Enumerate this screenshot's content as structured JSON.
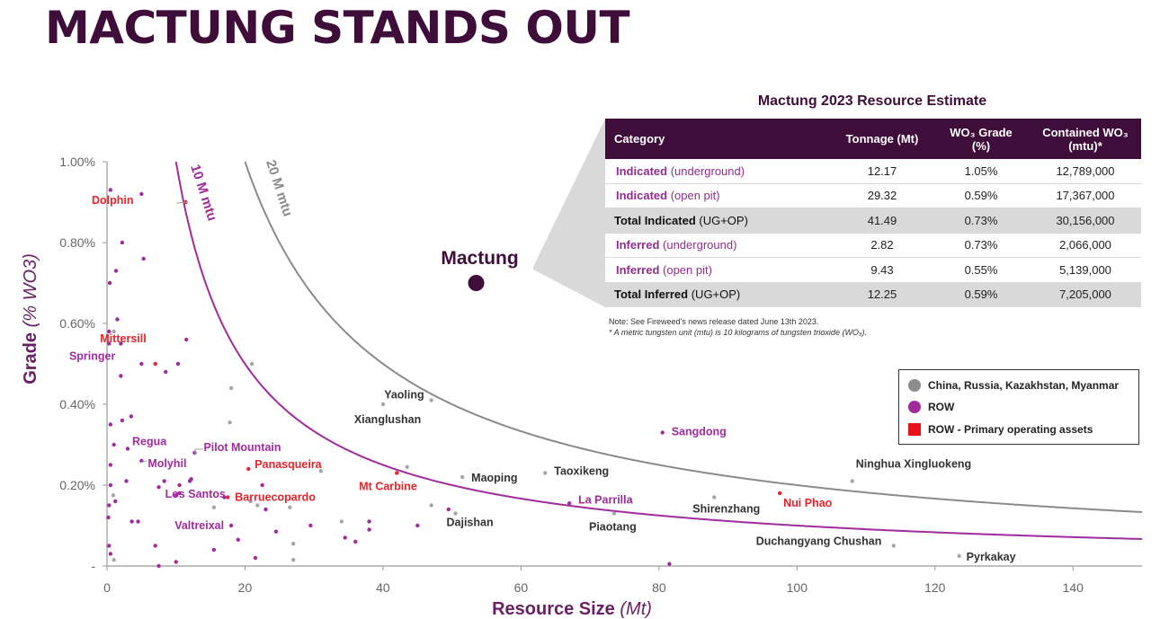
{
  "title": "MACTUNG STANDS OUT",
  "chart_data": {
    "type": "scatter",
    "xlabel": "Resource Size",
    "xlabel_unit": "(Mt)",
    "ylabel": "Grade",
    "ylabel_unit": "(% WO3)",
    "xlim": [
      0,
      150
    ],
    "ylim": [
      0,
      1.0
    ],
    "x_ticks": [
      {
        "v": 0,
        "label": "0"
      },
      {
        "v": 20,
        "label": "20"
      },
      {
        "v": 40,
        "label": "40"
      },
      {
        "v": 60,
        "label": "60"
      },
      {
        "v": 80,
        "label": "80"
      },
      {
        "v": 100,
        "label": "100"
      },
      {
        "v": 120,
        "label": "120"
      },
      {
        "v": 140,
        "label": "140"
      }
    ],
    "y_ticks": [
      {
        "v": 0,
        "label": "-"
      },
      {
        "v": 0.2,
        "label": "0.20%"
      },
      {
        "v": 0.4,
        "label": "0.40%"
      },
      {
        "v": 0.6,
        "label": "0.60%"
      },
      {
        "v": 0.8,
        "label": "0.80%"
      },
      {
        "v": 1.0,
        "label": "1.00%"
      }
    ],
    "curves": [
      {
        "name": "10 M mtu",
        "contained_mtu": 10000000,
        "color": "#a02c9c"
      },
      {
        "name": "20 M mtu",
        "contained_mtu": 20000000,
        "color": "#8a8a8a"
      }
    ],
    "highlight": {
      "name": "Mactung",
      "x": 53.5,
      "y": 0.7,
      "color": "#3f0d3a"
    },
    "labeled_points": [
      {
        "name": "Dolphin",
        "x": 11.4,
        "y": 0.9,
        "group": "primary"
      },
      {
        "name": "Mittersill",
        "x": 7.0,
        "y": 0.5,
        "group": "primary"
      },
      {
        "name": "Springer",
        "x": 2.0,
        "y": 0.47,
        "group": "row"
      },
      {
        "name": "Regua",
        "x": 3.0,
        "y": 0.29,
        "group": "row"
      },
      {
        "name": "Pilot Mountain",
        "x": 12.7,
        "y": 0.28,
        "group": "row"
      },
      {
        "name": "Molyhil",
        "x": 5.0,
        "y": 0.26,
        "group": "row"
      },
      {
        "name": "Panasqueira",
        "x": 20.5,
        "y": 0.24,
        "group": "primary"
      },
      {
        "name": "Los Santos",
        "x": 10.5,
        "y": 0.18,
        "group": "row"
      },
      {
        "name": "Barruecopardo",
        "x": 17.5,
        "y": 0.17,
        "group": "primary"
      },
      {
        "name": "Valtreixal",
        "x": 18.0,
        "y": 0.1,
        "group": "row"
      },
      {
        "name": "Mt Carbine",
        "x": 42.0,
        "y": 0.23,
        "group": "primary"
      },
      {
        "name": "Yaoling",
        "x": 47.0,
        "y": 0.41,
        "group": "china"
      },
      {
        "name": "Xianglushan",
        "x": 40.0,
        "y": 0.4,
        "group": "china"
      },
      {
        "name": "Maoping",
        "x": 51.5,
        "y": 0.22,
        "group": "china"
      },
      {
        "name": "Dajishan",
        "x": 50.5,
        "y": 0.13,
        "group": "china"
      },
      {
        "name": "Taoxikeng",
        "x": 63.5,
        "y": 0.23,
        "group": "china"
      },
      {
        "name": "La Parrilla",
        "x": 67.0,
        "y": 0.155,
        "group": "row"
      },
      {
        "name": "Piaotang",
        "x": 73.5,
        "y": 0.13,
        "group": "china"
      },
      {
        "name": "Sangdong",
        "x": 80.5,
        "y": 0.33,
        "group": "row"
      },
      {
        "name": "Shirenzhang",
        "x": 88.0,
        "y": 0.17,
        "group": "china"
      },
      {
        "name": "Nui Phao",
        "x": 97.5,
        "y": 0.18,
        "group": "primary"
      },
      {
        "name": "Ninghua Xingluokeng",
        "x": 108.0,
        "y": 0.21,
        "group": "china"
      },
      {
        "name": "Duchangyang Chushan",
        "x": 114.0,
        "y": 0.05,
        "group": "china"
      },
      {
        "name": "Pyrkakay",
        "x": 123.5,
        "y": 0.025,
        "group": "china"
      }
    ],
    "other_points": [
      {
        "x": 0.5,
        "y": 0.93,
        "g": "row"
      },
      {
        "x": 5.0,
        "y": 0.92,
        "g": "row"
      },
      {
        "x": 2.2,
        "y": 0.8,
        "g": "row"
      },
      {
        "x": 5.3,
        "y": 0.76,
        "g": "row"
      },
      {
        "x": 1.3,
        "y": 0.73,
        "g": "row"
      },
      {
        "x": 0.4,
        "y": 0.7,
        "g": "row"
      },
      {
        "x": 1.5,
        "y": 0.61,
        "g": "row"
      },
      {
        "x": 0.3,
        "y": 0.58,
        "g": "row"
      },
      {
        "x": 1.0,
        "y": 0.58,
        "g": "china"
      },
      {
        "x": 2.0,
        "y": 0.55,
        "g": "row"
      },
      {
        "x": 0.3,
        "y": 0.55,
        "g": "row"
      },
      {
        "x": 11.5,
        "y": 0.56,
        "g": "row"
      },
      {
        "x": 10.3,
        "y": 0.5,
        "g": "row"
      },
      {
        "x": 5.0,
        "y": 0.5,
        "g": "row"
      },
      {
        "x": 8.5,
        "y": 0.48,
        "g": "row"
      },
      {
        "x": 21.0,
        "y": 0.5,
        "g": "china"
      },
      {
        "x": 18.0,
        "y": 0.44,
        "g": "china"
      },
      {
        "x": 17.8,
        "y": 0.355,
        "g": "china"
      },
      {
        "x": 2.2,
        "y": 0.36,
        "g": "row"
      },
      {
        "x": 3.5,
        "y": 0.37,
        "g": "row"
      },
      {
        "x": 0.5,
        "y": 0.35,
        "g": "row"
      },
      {
        "x": 1.0,
        "y": 0.3,
        "g": "row"
      },
      {
        "x": 0.5,
        "y": 0.25,
        "g": "row"
      },
      {
        "x": 2.8,
        "y": 0.21,
        "g": "row"
      },
      {
        "x": 8.3,
        "y": 0.21,
        "g": "row"
      },
      {
        "x": 12.0,
        "y": 0.21,
        "g": "row"
      },
      {
        "x": 7.5,
        "y": 0.195,
        "g": "row"
      },
      {
        "x": 0.5,
        "y": 0.2,
        "g": "row"
      },
      {
        "x": 0.3,
        "y": 0.15,
        "g": "row"
      },
      {
        "x": 0.9,
        "y": 0.175,
        "g": "china"
      },
      {
        "x": 1.2,
        "y": 0.16,
        "g": "row"
      },
      {
        "x": 10.5,
        "y": 0.2,
        "g": "row"
      },
      {
        "x": 12.2,
        "y": 0.215,
        "g": "row"
      },
      {
        "x": 0.2,
        "y": 0.12,
        "g": "row"
      },
      {
        "x": 3.6,
        "y": 0.11,
        "g": "row"
      },
      {
        "x": 4.5,
        "y": 0.11,
        "g": "row"
      },
      {
        "x": 15.5,
        "y": 0.145,
        "g": "china"
      },
      {
        "x": 20.8,
        "y": 0.16,
        "g": "china"
      },
      {
        "x": 21.8,
        "y": 0.15,
        "g": "china"
      },
      {
        "x": 23.0,
        "y": 0.14,
        "g": "row"
      },
      {
        "x": 26.5,
        "y": 0.145,
        "g": "china"
      },
      {
        "x": 22.5,
        "y": 0.2,
        "g": "row"
      },
      {
        "x": 7.0,
        "y": 0.05,
        "g": "row"
      },
      {
        "x": 15.5,
        "y": 0.04,
        "g": "row"
      },
      {
        "x": 19.0,
        "y": 0.065,
        "g": "row"
      },
      {
        "x": 24.5,
        "y": 0.085,
        "g": "row"
      },
      {
        "x": 27.0,
        "y": 0.055,
        "g": "china"
      },
      {
        "x": 29.5,
        "y": 0.1,
        "g": "row"
      },
      {
        "x": 34.0,
        "y": 0.11,
        "g": "china"
      },
      {
        "x": 34.5,
        "y": 0.07,
        "g": "row"
      },
      {
        "x": 36.0,
        "y": 0.06,
        "g": "row"
      },
      {
        "x": 38.0,
        "y": 0.11,
        "g": "row"
      },
      {
        "x": 38.0,
        "y": 0.09,
        "g": "row"
      },
      {
        "x": 45.0,
        "y": 0.1,
        "g": "row"
      },
      {
        "x": 47.0,
        "y": 0.15,
        "g": "china"
      },
      {
        "x": 49.5,
        "y": 0.14,
        "g": "row"
      },
      {
        "x": 43.5,
        "y": 0.245,
        "g": "china"
      },
      {
        "x": 31.0,
        "y": 0.235,
        "g": "china"
      },
      {
        "x": 0.3,
        "y": 0.05,
        "g": "row"
      },
      {
        "x": 0.5,
        "y": 0.03,
        "g": "row"
      },
      {
        "x": 1.0,
        "y": 0.015,
        "g": "china"
      },
      {
        "x": 7.5,
        "y": 0.0,
        "g": "row"
      },
      {
        "x": 10.0,
        "y": 0.01,
        "g": "row"
      },
      {
        "x": 21.5,
        "y": 0.02,
        "g": "row"
      },
      {
        "x": 27.0,
        "y": 0.015,
        "g": "china"
      },
      {
        "x": 81.5,
        "y": 0.005,
        "g": "row"
      },
      {
        "x": 10.0,
        "y": 0.175,
        "g": "row"
      },
      {
        "x": 17.0,
        "y": 0.17,
        "g": "row"
      }
    ],
    "group_colors": {
      "china": "#a6a6a6",
      "row": "#a02c9c",
      "primary": "#e8232a"
    },
    "label_colors": {
      "china": "#333333",
      "row": "#a02c9c",
      "primary": "#e8232a"
    }
  },
  "table": {
    "title": "Mactung 2023 Resource Estimate",
    "headers": [
      "Category",
      "Tonnage (Mt)",
      "WO₃ Grade (%)",
      "Contained WO₃ (mtu)*"
    ],
    "rows": [
      {
        "cat": "Indicated",
        "sub": " (underground)",
        "tonnage": "12.17",
        "grade": "1.05%",
        "contained": "12,789,000",
        "total": false
      },
      {
        "cat": "Indicated",
        "sub": " (open pit)",
        "tonnage": "29.32",
        "grade": "0.59%",
        "contained": "17,367,000",
        "total": false
      },
      {
        "cat": "Total Indicated",
        "sub": " (UG+OP)",
        "tonnage": "41.49",
        "grade": "0.73%",
        "contained": "30,156,000",
        "total": true
      },
      {
        "cat": "Inferred",
        "sub": " (underground)",
        "tonnage": "2.82",
        "grade": "0.73%",
        "contained": "2,066,000",
        "total": false
      },
      {
        "cat": "Inferred",
        "sub": " (open pit)",
        "tonnage": "9.43",
        "grade": "0.55%",
        "contained": "5,139,000",
        "total": false
      },
      {
        "cat": "Total Inferred",
        "sub": " (UG+OP)",
        "tonnage": "12.25",
        "grade": "0.59%",
        "contained": "7,205,000",
        "total": true
      }
    ],
    "note1": "Note: See Fireweed's news release dated June 13th 2023.",
    "note2": "* A metric tungsten unit (mtu) is 10 kilograms of tungsten trioxide (WO₃)."
  },
  "legend": [
    {
      "label": "China, Russia, Kazakhstan, Myanmar",
      "color": "#8c8c8c",
      "shape": "circle"
    },
    {
      "label": "ROW",
      "color": "#a02c9c",
      "shape": "circle"
    },
    {
      "label": "ROW - Primary operating assets",
      "color": "#e8121a",
      "shape": "square"
    }
  ]
}
